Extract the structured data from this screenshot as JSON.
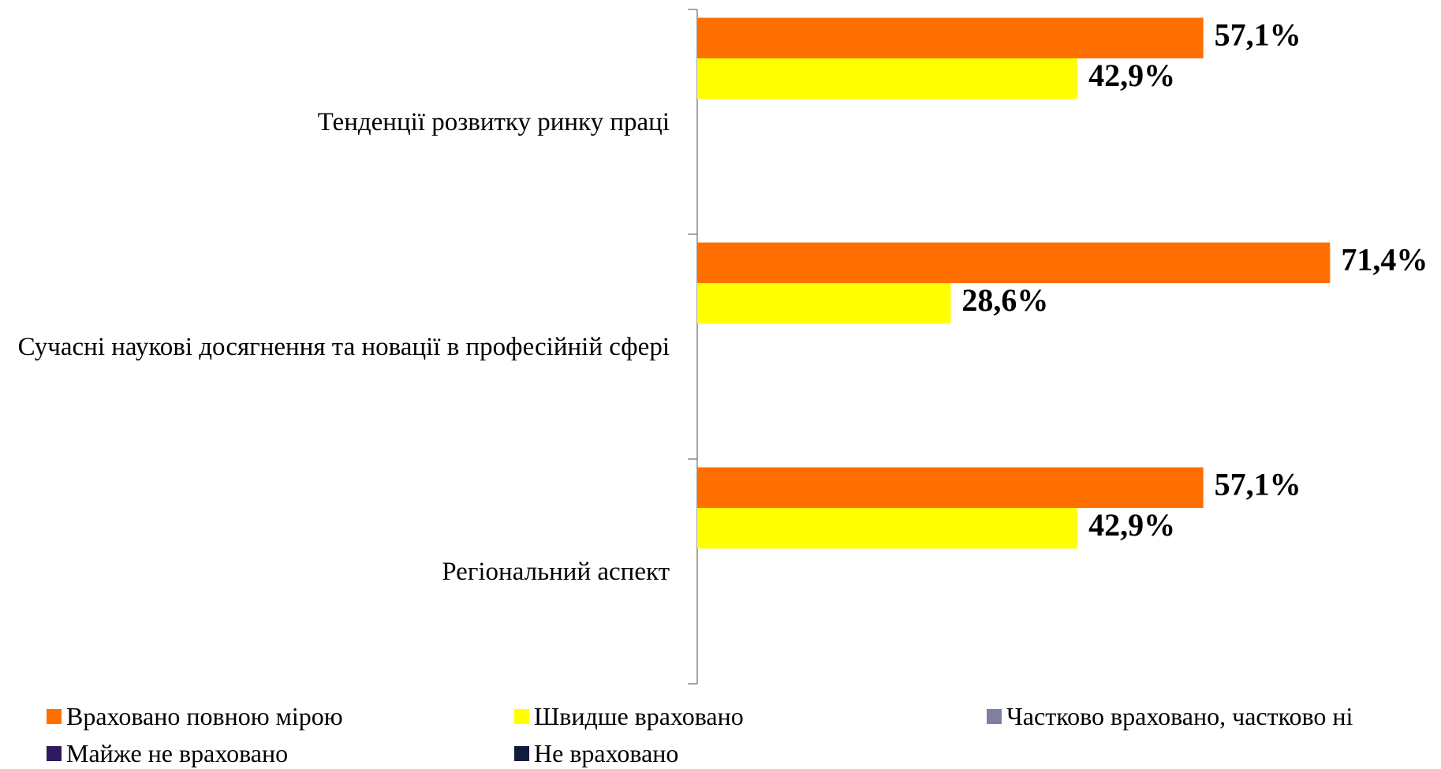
{
  "chart_data": {
    "type": "bar",
    "orientation": "horizontal",
    "categories": [
      "Тенденції розвитку ринку праці",
      "Сучасні наукові досягнення та новації в професійній сфері",
      "Регіональний аспект"
    ],
    "series": [
      {
        "name": "Враховано повною мірою",
        "color": "#ff6f00",
        "values": [
          57.1,
          71.4,
          57.1
        ],
        "value_labels": [
          "57,1%",
          "71,4%",
          "57,1%"
        ]
      },
      {
        "name": "Швидше враховано",
        "color": "#ffff00",
        "values": [
          42.9,
          28.6,
          42.9
        ],
        "value_labels": [
          "42,9%",
          "28,6%",
          "42,9%"
        ]
      },
      {
        "name": "Частково враховано, частково ні",
        "color": "#7f7f9f",
        "values": [
          0,
          0,
          0
        ]
      },
      {
        "name": "Майже не враховано",
        "color": "#2e1a5e",
        "values": [
          0,
          0,
          0
        ]
      },
      {
        "name": "Не враховано",
        "color": "#0f1c3f",
        "values": [
          0,
          0,
          0
        ]
      }
    ],
    "xlim": [
      0,
      80
    ]
  }
}
